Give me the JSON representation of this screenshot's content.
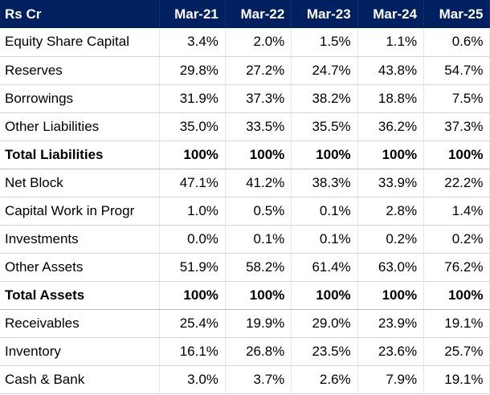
{
  "table": {
    "header": [
      "Rs Cr",
      "Mar-21",
      "Mar-22",
      "Mar-23",
      "Mar-24",
      "Mar-25"
    ],
    "rows": [
      {
        "label": "Equity Share Capital",
        "values": [
          "3.4%",
          "2.0%",
          "1.5%",
          "1.1%",
          "0.6%"
        ],
        "bold": false
      },
      {
        "label": "Reserves",
        "values": [
          "29.8%",
          "27.2%",
          "24.7%",
          "43.8%",
          "54.7%"
        ],
        "bold": false
      },
      {
        "label": "Borrowings",
        "values": [
          "31.9%",
          "37.3%",
          "38.2%",
          "18.8%",
          "7.5%"
        ],
        "bold": false
      },
      {
        "label": "Other Liabilities",
        "values": [
          "35.0%",
          "33.5%",
          "35.5%",
          "36.2%",
          "37.3%"
        ],
        "bold": false
      },
      {
        "label": "Total Liabilities",
        "values": [
          "100%",
          "100%",
          "100%",
          "100%",
          "100%"
        ],
        "bold": true
      },
      {
        "label": "Net Block",
        "values": [
          "47.1%",
          "41.2%",
          "38.3%",
          "33.9%",
          "22.2%"
        ],
        "bold": false
      },
      {
        "label": "Capital Work in Progr",
        "values": [
          "1.0%",
          "0.5%",
          "0.1%",
          "2.8%",
          "1.4%"
        ],
        "bold": false
      },
      {
        "label": "Investments",
        "values": [
          "0.0%",
          "0.1%",
          "0.1%",
          "0.2%",
          "0.2%"
        ],
        "bold": false
      },
      {
        "label": "Other Assets",
        "values": [
          "51.9%",
          "58.2%",
          "61.4%",
          "63.0%",
          "76.2%"
        ],
        "bold": false
      },
      {
        "label": "Total Assets",
        "values": [
          "100%",
          "100%",
          "100%",
          "100%",
          "100%"
        ],
        "bold": true
      },
      {
        "label": "Receivables",
        "values": [
          "25.4%",
          "19.9%",
          "29.0%",
          "23.9%",
          "19.1%"
        ],
        "bold": false
      },
      {
        "label": "Inventory",
        "values": [
          "16.1%",
          "26.8%",
          "23.5%",
          "23.6%",
          "25.7%"
        ],
        "bold": false
      },
      {
        "label": "Cash & Bank",
        "values": [
          "3.0%",
          "3.7%",
          "2.6%",
          "7.9%",
          "19.1%"
        ],
        "bold": false
      }
    ]
  },
  "colors": {
    "header_background": "#002060",
    "header_text": "#ffffff"
  }
}
